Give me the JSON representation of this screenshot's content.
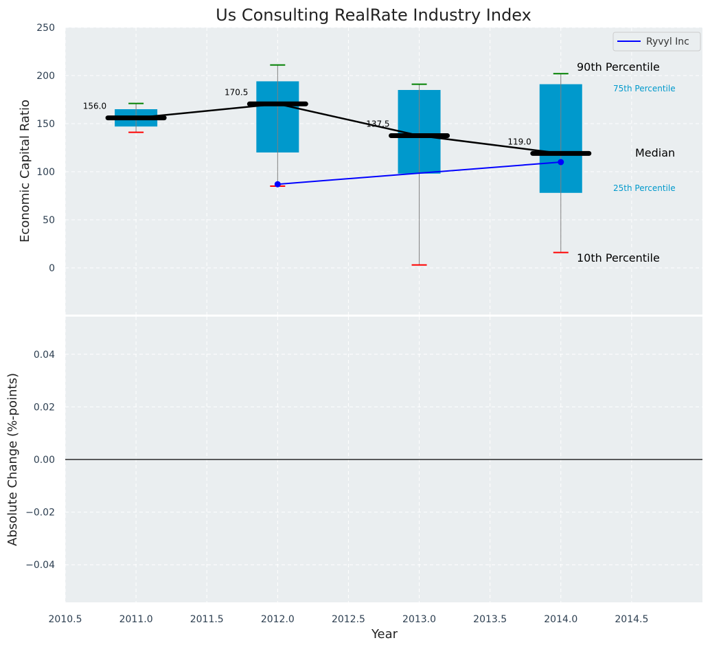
{
  "chart_data": [
    {
      "type": "box",
      "title": "Us Consulting RealRate Industry Index",
      "xlabel": "",
      "ylabel": "Economic Capital Ratio",
      "xlim": [
        2010.5,
        2015.0
      ],
      "ylim": [
        -50,
        250
      ],
      "x_ticks": [
        2010.5,
        2011.0,
        2011.5,
        2012.0,
        2012.5,
        2013.0,
        2013.5,
        2014.0,
        2014.5
      ],
      "x_tick_labels": [
        "2010.5",
        "2011.0",
        "2011.5",
        "2012.0",
        "2012.5",
        "2013.0",
        "2013.5",
        "2014.0",
        "2014.5"
      ],
      "y_ticks": [
        0,
        50,
        100,
        150,
        200,
        250
      ],
      "y_tick_labels": [
        "0",
        "50",
        "100",
        "150",
        "200",
        "250"
      ],
      "grid": true,
      "legend_position": "top-right",
      "boxes": [
        {
          "x": 2011,
          "p10": 141,
          "p25": 147,
          "median": 156.0,
          "p75": 165,
          "p90": 171,
          "median_label": "156.0"
        },
        {
          "x": 2012,
          "p10": 85,
          "p25": 120,
          "median": 170.5,
          "p75": 194,
          "p90": 211,
          "median_label": "170.5"
        },
        {
          "x": 2013,
          "p10": 3,
          "p25": 98,
          "median": 137.5,
          "p75": 185,
          "p90": 191,
          "median_label": "137.5"
        },
        {
          "x": 2014,
          "p10": 16,
          "p25": 78,
          "median": 119.0,
          "p75": 191,
          "p90": 202,
          "median_label": "119.0"
        }
      ],
      "series": [
        {
          "name": "Ryvyl Inc",
          "x": [
            2012,
            2014
          ],
          "values": [
            87,
            110
          ],
          "color": "#0000ff"
        }
      ],
      "percentile_labels": {
        "p90": "90th Percentile",
        "p75": "75th Percentile",
        "median": "Median",
        "p25": "25th Percentile",
        "p10": "10th Percentile"
      },
      "colors": {
        "box": "#0099cc",
        "median": "#000000",
        "p90_cap": "#008000",
        "p10_cap": "#ff0000",
        "whisker": "#808080",
        "percentile_text": "#0099cc",
        "background": "#eaeef0"
      }
    },
    {
      "type": "line",
      "title": "",
      "xlabel": "Year",
      "ylabel": "Absolute Change (%-points)",
      "xlim": [
        2010.5,
        2015.0
      ],
      "ylim": [
        -0.055,
        0.055
      ],
      "x_ticks": [
        2010.5,
        2011.0,
        2011.5,
        2012.0,
        2012.5,
        2013.0,
        2013.5,
        2014.0,
        2014.5
      ],
      "x_tick_labels": [
        "2010.5",
        "2011.0",
        "2011.5",
        "2012.0",
        "2012.5",
        "2013.0",
        "2013.5",
        "2014.0",
        "2014.5"
      ],
      "y_ticks": [
        -0.04,
        -0.02,
        0.0,
        0.02,
        0.04
      ],
      "y_tick_labels": [
        "−0.04",
        "−0.02",
        "0.00",
        "0.02",
        "0.04"
      ],
      "grid": true,
      "zero_line": 0.0,
      "series": []
    }
  ]
}
